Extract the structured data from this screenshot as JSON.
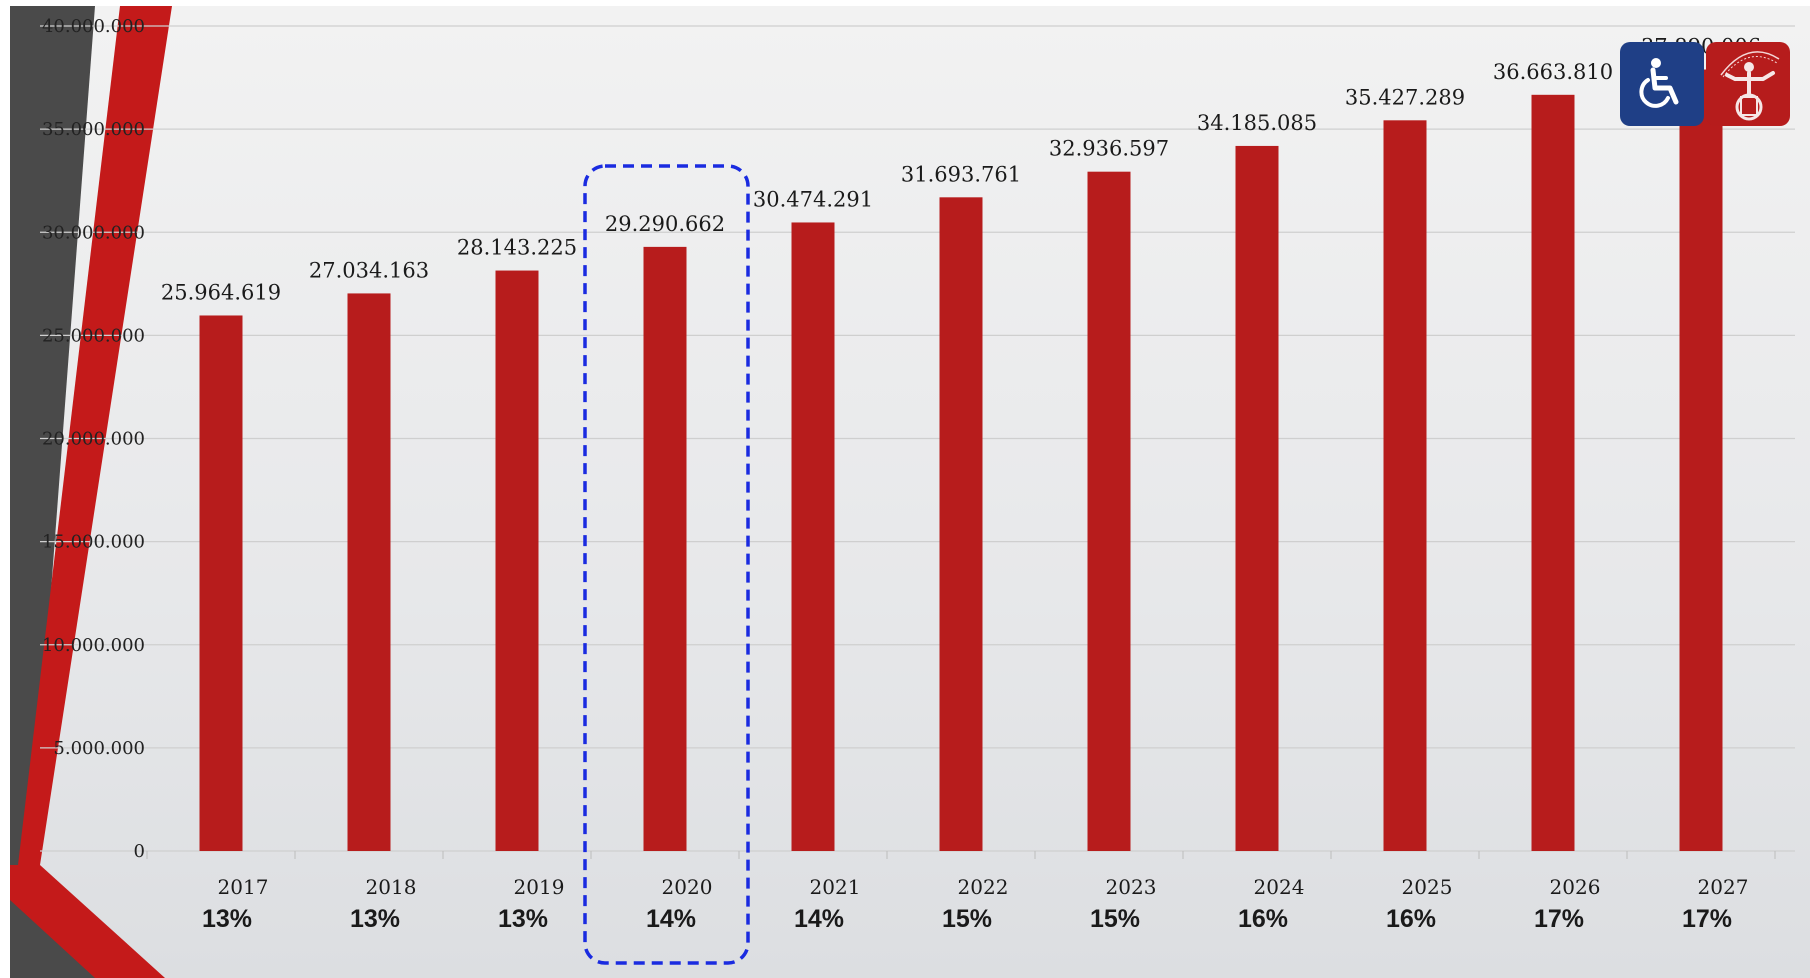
{
  "colors": {
    "bar": "#b71c1c",
    "grid": "#cfcfcf",
    "highlight_box": "#1a2be0",
    "stripe_red": "#c41a1a",
    "stripe_dark": "#4a4a4a",
    "logo_blue": "#1f3f86",
    "logo_red": "#b61c1c"
  },
  "icons": {
    "logo_1": "wheelchair-accessibility-icon",
    "logo_2": "paralympic-athlete-icon"
  },
  "chart_data": {
    "type": "bar",
    "title": "",
    "xlabel": "",
    "ylabel": "",
    "ylim": [
      0,
      40000000
    ],
    "yticks": [
      0,
      5000000,
      10000000,
      15000000,
      20000000,
      25000000,
      30000000,
      35000000,
      40000000
    ],
    "ytick_labels": [
      "0",
      "5.000.000",
      "10.000.000",
      "15.000.000",
      "20.000.000",
      "25.000.000",
      "30.000.000",
      "35.000.000",
      "40.000.000"
    ],
    "categories": [
      "2017",
      "2018",
      "2019",
      "2020",
      "2021",
      "2022",
      "2023",
      "2024",
      "2025",
      "2026",
      "2027"
    ],
    "values": [
      25964619,
      27034163,
      28143225,
      29290662,
      30474291,
      31693761,
      32936597,
      34185085,
      35427289,
      36663810,
      37890006
    ],
    "value_labels": [
      "25.964.619",
      "27.034.163",
      "28.143.225",
      "29.290.662",
      "30.474.291",
      "31.693.761",
      "32.936.597",
      "34.185.085",
      "35.427.289",
      "36.663.810",
      "37.890.006"
    ],
    "percentages": [
      "13%",
      "13%",
      "13%",
      "14%",
      "14%",
      "15%",
      "15%",
      "16%",
      "16%",
      "17%",
      "17%"
    ],
    "highlighted_category": "2020",
    "grid": true,
    "legend": "none"
  }
}
